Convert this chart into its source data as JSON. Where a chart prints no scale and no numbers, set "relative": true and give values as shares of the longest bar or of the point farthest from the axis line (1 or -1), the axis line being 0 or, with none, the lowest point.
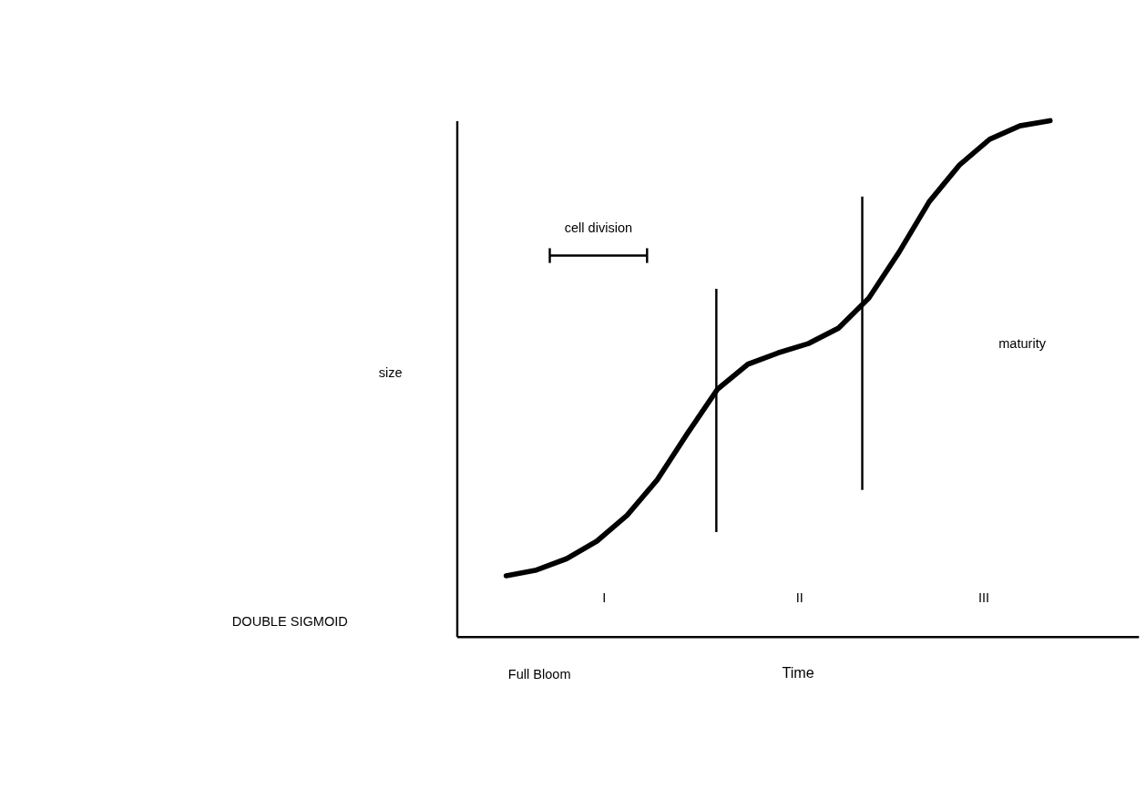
{
  "chart_data": {
    "type": "line",
    "relative": true,
    "xlabel": "Time",
    "categories": [
      null,
      null,
      null,
      null,
      null,
      null,
      null,
      null,
      null,
      null,
      null,
      null,
      null,
      null,
      null,
      null,
      null,
      null,
      null
    ],
    "series": [
      {
        "color": "#000000",
        "values": [
          0.118,
          0.129,
          0.151,
          0.185,
          0.235,
          0.304,
          0.394,
          0.48,
          0.528,
          0.55,
          0.568,
          0.598,
          0.656,
          0.745,
          0.843,
          0.914,
          0.964,
          0.99,
          1.0
        ]
      }
    ],
    "annotations": [
      "cell division",
      "maturity",
      "Full Bloom",
      "I",
      "II",
      "III",
      "DOUBLE SIGMOID",
      "size"
    ],
    "tick_labels": false,
    "grid": false,
    "line_style": "solid",
    "marker": "none"
  }
}
